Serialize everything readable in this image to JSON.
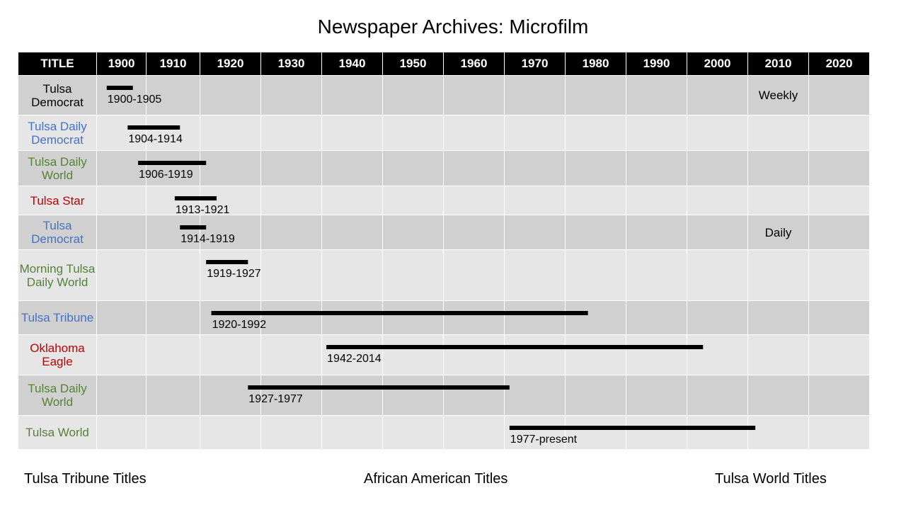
{
  "page_title": "Newspaper Archives: Microfilm",
  "colors": {
    "black": "#000000",
    "tribune": "#4472C4",
    "african_american": "#C00000",
    "world": "#548235"
  },
  "header": {
    "title_col": "TITLE",
    "decades": [
      "1900",
      "1910",
      "1920",
      "1930",
      "1940",
      "1950",
      "1960",
      "1970",
      "1980",
      "1990",
      "2000",
      "2010",
      "2020"
    ]
  },
  "rows": [
    {
      "title": "Tulsa Democrat",
      "group": "black",
      "note": "Weekly"
    },
    {
      "title": "Tulsa Daily Democrat",
      "group": "tribune",
      "note": ""
    },
    {
      "title": "Tulsa Daily World",
      "group": "world",
      "note": ""
    },
    {
      "title": "Tulsa Star",
      "group": "african_american",
      "note": ""
    },
    {
      "title": "Tulsa Democrat",
      "group": "tribune",
      "note": "Daily"
    },
    {
      "title": "Morning Tulsa Daily World",
      "group": "world",
      "note": ""
    },
    {
      "title": "Tulsa Tribune",
      "group": "tribune",
      "note": ""
    },
    {
      "title": "Oklahoma Eagle",
      "group": "african_american",
      "note": ""
    },
    {
      "title": "Tulsa Daily World",
      "group": "world",
      "note": ""
    },
    {
      "title": "Tulsa World",
      "group": "world",
      "note": ""
    }
  ],
  "chart_data": {
    "type": "bar",
    "title": "Newspaper Archives: Microfilm",
    "x_ticks": [
      "1900",
      "1910",
      "1920",
      "1930",
      "1940",
      "1950",
      "1960",
      "1970",
      "1980",
      "1990",
      "2000",
      "2010",
      "2020"
    ],
    "ranges": [
      {
        "start": 1900,
        "end": 1905,
        "label": "1900-1905"
      },
      {
        "start": 1904,
        "end": 1914,
        "label": "1904-1914"
      },
      {
        "start": 1906,
        "end": 1919,
        "label": "1906-1919"
      },
      {
        "start": 1913,
        "end": 1921,
        "label": "1913-1921"
      },
      {
        "start": 1914,
        "end": 1919,
        "label": "1914-1919"
      },
      {
        "start": 1919,
        "end": 1927,
        "label": "1919-1927"
      },
      {
        "start": 1920,
        "end": 1992,
        "label": "1920-1992"
      },
      {
        "start": 1942,
        "end": 2014,
        "label": "1942-2014"
      },
      {
        "start": 1927,
        "end": 1977,
        "label": "1927-1977"
      },
      {
        "start": 1977,
        "end": 2024,
        "label": "1977-present"
      }
    ]
  },
  "legend": {
    "tribune": "Tulsa Tribune Titles",
    "african_american": "African American Titles",
    "world": "Tulsa World Titles"
  }
}
